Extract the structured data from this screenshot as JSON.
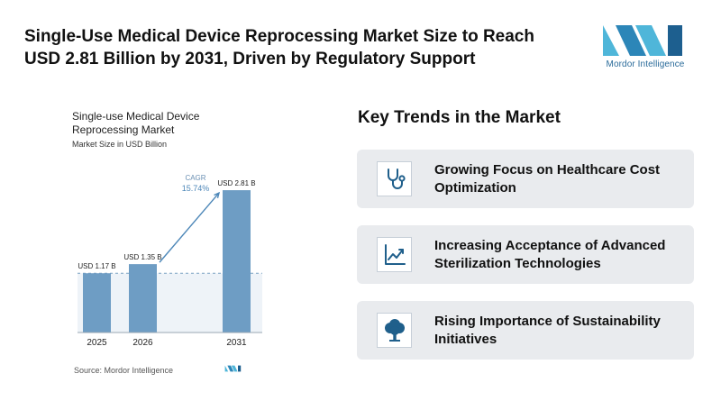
{
  "header": {
    "title": "Single-Use Medical Device Reprocessing Market Size to Reach USD 2.81 Billion by 2031, Driven by Regulatory Support",
    "brand_name": "Mordor Intelligence",
    "logo_icon": "mordor-intelligence-logo-icon"
  },
  "chart_data": {
    "type": "bar",
    "title": "Single-use Medical Device Reprocessing Market",
    "subtitle": "Market Size in USD Billion",
    "categories": [
      "2025",
      "2026",
      "2031"
    ],
    "values": [
      1.17,
      1.35,
      2.81
    ],
    "value_labels": [
      "USD 1.17 B",
      "USD 1.35 B",
      "USD 2.81 B"
    ],
    "annotation": {
      "label": "CAGR",
      "value": "15.74%"
    },
    "ylim": [
      0,
      2.9
    ],
    "grid": false,
    "reference_line": 1.17,
    "bar_color": "#6e9dc4",
    "source": "Source: Mordor Intelligence"
  },
  "trends": {
    "title": "Key Trends in the Market",
    "items": [
      {
        "label": "Growing Focus on Healthcare Cost Optimization",
        "icon": "stethoscope-icon"
      },
      {
        "label": "Increasing Acceptance of Advanced Sterilization Technologies",
        "icon": "line-chart-icon"
      },
      {
        "label": "Rising Importance of Sustainability Initiatives",
        "icon": "tree-icon"
      }
    ]
  },
  "colors": {
    "accent": "#1f5f8b",
    "card_background": "#e9ebee",
    "logo_light": "#4fb6d9",
    "logo_dark": "#1d5f8f"
  }
}
